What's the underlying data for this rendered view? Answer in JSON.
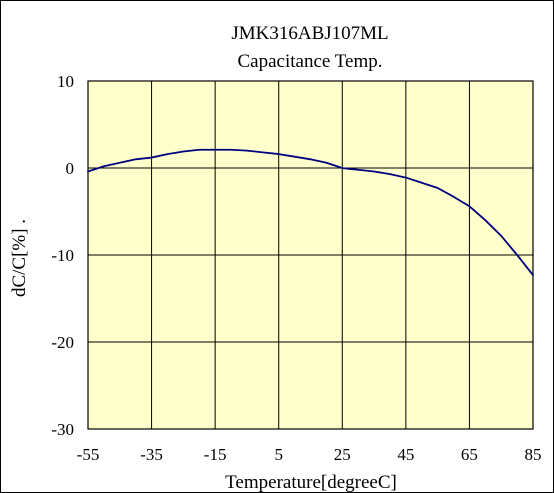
{
  "chart_data": {
    "type": "line",
    "title": "JMK316ABJ107ML",
    "subtitle": "Capacitance Temp.",
    "xlabel": "Temperature[degreeC]",
    "ylabel": "dC/C[%] .",
    "xlim": [
      -55,
      85
    ],
    "ylim": [
      -30,
      10
    ],
    "x_ticks": [
      -55,
      -35,
      -15,
      5,
      25,
      45,
      65,
      85
    ],
    "y_ticks": [
      10,
      0,
      -10,
      -20,
      -30
    ],
    "x_tick_labels": [
      "-55",
      "-35",
      "-15",
      "5",
      "25",
      "45",
      "65",
      "85"
    ],
    "y_tick_labels": [
      "10",
      "0",
      "-10",
      "-20",
      "-30"
    ],
    "grid": true,
    "legend": "none",
    "colors": {
      "plot_background": "#ffffcc",
      "line": "#000080",
      "grid": "#000000"
    },
    "series": [
      {
        "x": [
          -55,
          -50,
          -45,
          -40,
          -35,
          -30,
          -25,
          -20,
          -15,
          -10,
          -5,
          0,
          5,
          10,
          15,
          20,
          25,
          27,
          30,
          35,
          40,
          45,
          50,
          55,
          60,
          65,
          70,
          75,
          80,
          85
        ],
        "y": [
          -0.4,
          0.2,
          0.6,
          1.0,
          1.2,
          1.6,
          1.9,
          2.1,
          2.1,
          2.1,
          2.0,
          1.8,
          1.6,
          1.3,
          1.0,
          0.6,
          0.0,
          -0.1,
          -0.2,
          -0.4,
          -0.7,
          -1.1,
          -1.7,
          -2.3,
          -3.3,
          -4.4,
          -6.0,
          -7.8,
          -10.0,
          -12.3
        ]
      }
    ]
  }
}
